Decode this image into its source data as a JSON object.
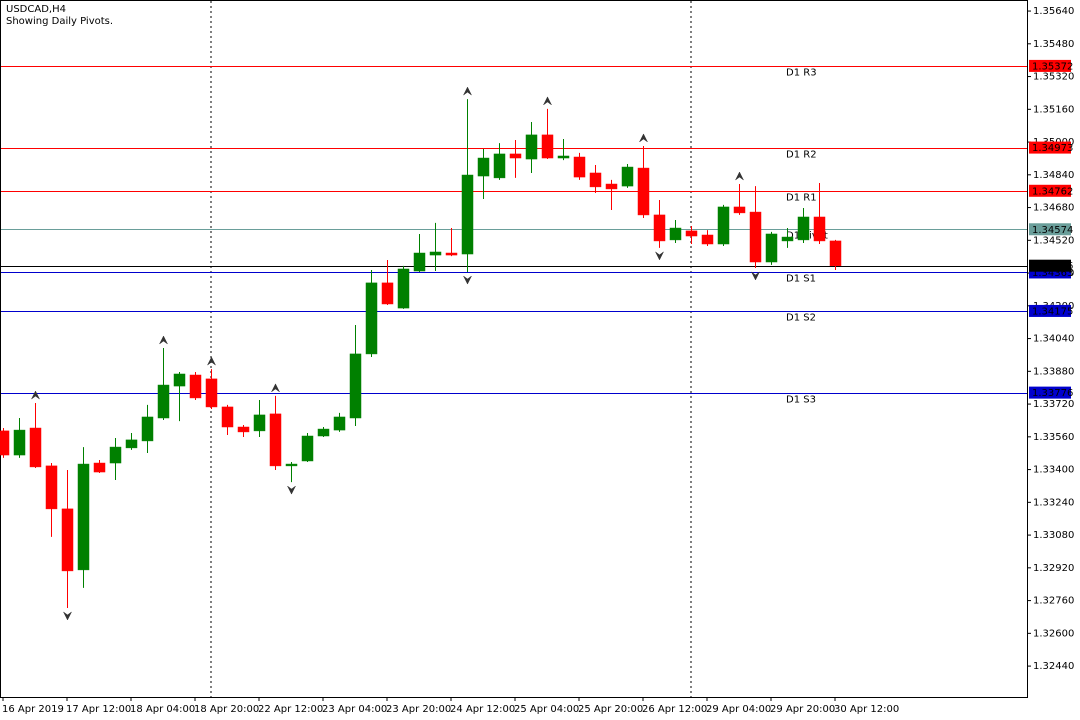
{
  "chart_data": {
    "type": "candlestick",
    "title": "USDCAD,H4",
    "subtitle": "Showing Daily Pivots.",
    "categories": [
      "16 Apr 2019",
      null,
      null,
      null,
      "17 Apr 12:00",
      null,
      null,
      null,
      "18 Apr 04:00",
      null,
      null,
      null,
      "18 Apr 20:00",
      null,
      null,
      null,
      "22 Apr 12:00",
      null,
      null,
      null,
      "23 Apr 04:00",
      null,
      null,
      null,
      "23 Apr 20:00",
      null,
      null,
      null,
      "24 Apr 12:00",
      null,
      null,
      null,
      "25 Apr 04:00",
      null,
      null,
      null,
      "25 Apr 20:00",
      null,
      null,
      null,
      "26 Apr 12:00",
      null,
      null,
      null,
      "29 Apr 04:00",
      null,
      null,
      null,
      "29 Apr 20:00",
      null,
      null,
      null,
      "30 Apr 12:00"
    ],
    "open": [
      1.33589,
      1.33471,
      1.33603,
      1.33418,
      1.33208,
      1.3291,
      1.33432,
      1.33432,
      1.33506,
      1.3354,
      1.33652,
      1.33808,
      1.33862,
      1.33843,
      1.33706,
      1.33608,
      1.33589,
      1.33672,
      1.33418,
      1.33442,
      1.33564,
      1.33593,
      1.33652,
      1.33965,
      1.34312,
      1.34189,
      1.3437,
      1.34448,
      1.34458,
      1.34453,
      1.34834,
      1.34825,
      1.34942,
      1.34917,
      1.35035,
      1.34922,
      1.34927,
      1.34849,
      1.34795,
      1.34785,
      1.34873,
      1.34644,
      1.34522,
      1.34566,
      1.34546,
      1.34502,
      1.34683,
      1.34658,
      1.34414,
      1.34517,
      1.34522,
      1.34634,
      1.34517
    ],
    "high": [
      1.33603,
      1.33652,
      1.33725,
      1.33432,
      1.33398,
      1.3351,
      1.33447,
      1.33554,
      1.33579,
      1.33716,
      1.33994,
      1.33877,
      1.33877,
      1.33891,
      1.33716,
      1.33618,
      1.3374,
      1.3376,
      1.33437,
      1.33579,
      1.33608,
      1.33677,
      1.34106,
      1.34375,
      1.34424,
      1.34395,
      1.34551,
      1.34605,
      1.3458,
      1.3521,
      1.34966,
      1.34995,
      1.3501,
      1.35098,
      1.35162,
      1.35015,
      1.34947,
      1.34888,
      1.34815,
      1.34893,
      1.34981,
      1.34717,
      1.34619,
      1.3459,
      1.3457,
      1.34693,
      1.34795,
      1.34785,
      1.34561,
      1.3458,
      1.34678,
      1.348,
      1.34522
    ],
    "low": [
      1.33457,
      1.33457,
      1.33408,
      1.33071,
      1.32724,
      1.32822,
      1.33383,
      1.33349,
      1.33496,
      1.33481,
      1.33642,
      1.33637,
      1.3374,
      1.33696,
      1.33569,
      1.33559,
      1.33559,
      1.33398,
      1.33339,
      1.33437,
      1.33559,
      1.33584,
      1.33613,
      1.3395,
      1.34204,
      1.34185,
      1.34365,
      1.3437,
      1.34443,
      1.34365,
      1.34722,
      1.34815,
      1.34825,
      1.34849,
      1.34917,
      1.34912,
      1.34815,
      1.34751,
      1.34668,
      1.34776,
      1.34629,
      1.34483,
      1.34507,
      1.34502,
      1.34492,
      1.34492,
      1.34644,
      1.34385,
      1.344,
      1.34483,
      1.34507,
      1.34502,
      1.34375
    ],
    "close": [
      1.33471,
      1.33593,
      1.33413,
      1.33208,
      1.32905,
      1.33427,
      1.33388,
      1.3351,
      1.33545,
      1.33657,
      1.33813,
      1.33867,
      1.3375,
      1.33706,
      1.33608,
      1.33584,
      1.33667,
      1.33418,
      1.33427,
      1.33564,
      1.33598,
      1.33657,
      1.33965,
      1.34312,
      1.34209,
      1.3438,
      1.34458,
      1.34463,
      1.34448,
      1.34839,
      1.34922,
      1.34942,
      1.34922,
      1.35035,
      1.34922,
      1.34932,
      1.34829,
      1.34781,
      1.34771,
      1.34878,
      1.34644,
      1.34517,
      1.3458,
      1.34541,
      1.34502,
      1.34683,
      1.34654,
      1.34414,
      1.34551,
      1.34536,
      1.34634,
      1.34517,
      1.34396
    ],
    "up_color": "#008000",
    "down_color": "#ff0000",
    "fractals": {
      "up": [
        2,
        10,
        13,
        17,
        29,
        34,
        40,
        46
      ],
      "down": [
        4,
        18,
        29,
        41,
        47
      ]
    },
    "pivots": [
      {
        "name": "D1 R3",
        "value": 1.35372,
        "color": "#ff0000"
      },
      {
        "name": "D1 R2",
        "value": 1.34973,
        "color": "#ff0000"
      },
      {
        "name": "D1 R1",
        "value": 1.34762,
        "color": "#ff0000"
      },
      {
        "name": "D1 Pivot",
        "value": 1.34574,
        "color": "#6a9e9a"
      },
      {
        "name": "D1 S1",
        "value": 1.34363,
        "color": "#0000cd"
      },
      {
        "name": "D1 S2",
        "value": 1.34175,
        "color": "#0000cd"
      },
      {
        "name": "D1 S3",
        "value": 1.33776,
        "color": "#0000cd"
      }
    ],
    "last_price": {
      "value": 1.34396,
      "color": "#000000"
    },
    "ylim": [
      1.32289,
      1.35694
    ],
    "yticks": [
      {
        "value": 1.3564,
        "label": "1.35640"
      },
      {
        "value": 1.3548,
        "label": "1.35480"
      },
      {
        "value": 1.3532,
        "label": "1.35320"
      },
      {
        "value": 1.3516,
        "label": "1.35160"
      },
      {
        "value": 1.35,
        "label": "1.35000"
      },
      {
        "value": 1.3484,
        "label": "1.34840"
      },
      {
        "value": 1.3468,
        "label": "1.34680"
      },
      {
        "value": 1.3452,
        "label": "1.34520"
      },
      {
        "value": 1.3436,
        "label": "1.34360"
      },
      {
        "value": 1.342,
        "label": "1.34200"
      },
      {
        "value": 1.3404,
        "label": "1.34040"
      },
      {
        "value": 1.3388,
        "label": "1.33880"
      },
      {
        "value": 1.3372,
        "label": "1.33720"
      },
      {
        "value": 1.3356,
        "label": "1.33560"
      },
      {
        "value": 1.334,
        "label": "1.33400"
      },
      {
        "value": 1.3324,
        "label": "1.33240"
      },
      {
        "value": 1.3308,
        "label": "1.33080"
      },
      {
        "value": 1.3292,
        "label": "1.32920"
      },
      {
        "value": 1.3276,
        "label": "1.32760"
      },
      {
        "value": 1.326,
        "label": "1.32600"
      },
      {
        "value": 1.3244,
        "label": "1.32440"
      }
    ]
  }
}
